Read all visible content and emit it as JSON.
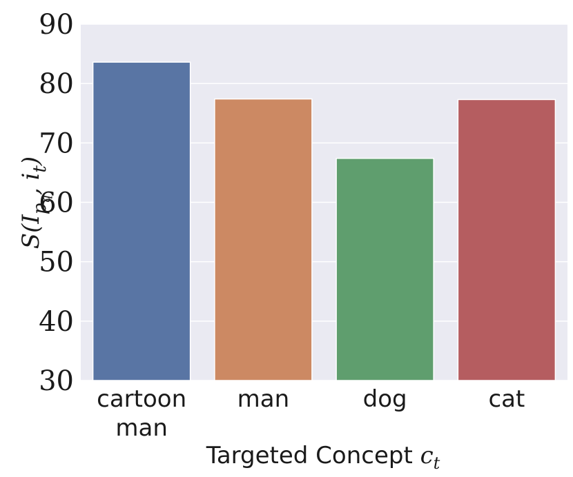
{
  "chart_data": {
    "type": "bar",
    "categories": [
      [
        "cartoon",
        "man"
      ],
      [
        "man"
      ],
      [
        "dog"
      ],
      [
        "cat"
      ]
    ],
    "values": [
      83.6,
      77.4,
      67.4,
      77.3
    ],
    "colors": [
      "#5975a4",
      "#cc8963",
      "#5f9e6e",
      "#b55d60"
    ],
    "background": "#eaeaf2",
    "grid": true,
    "ylim": [
      30,
      90
    ],
    "yticks": [
      30,
      40,
      50,
      60,
      70,
      80,
      90
    ],
    "xlabel": "Targeted Concept c_t",
    "ylabel": "S(I_{p_q}, i_t)"
  }
}
